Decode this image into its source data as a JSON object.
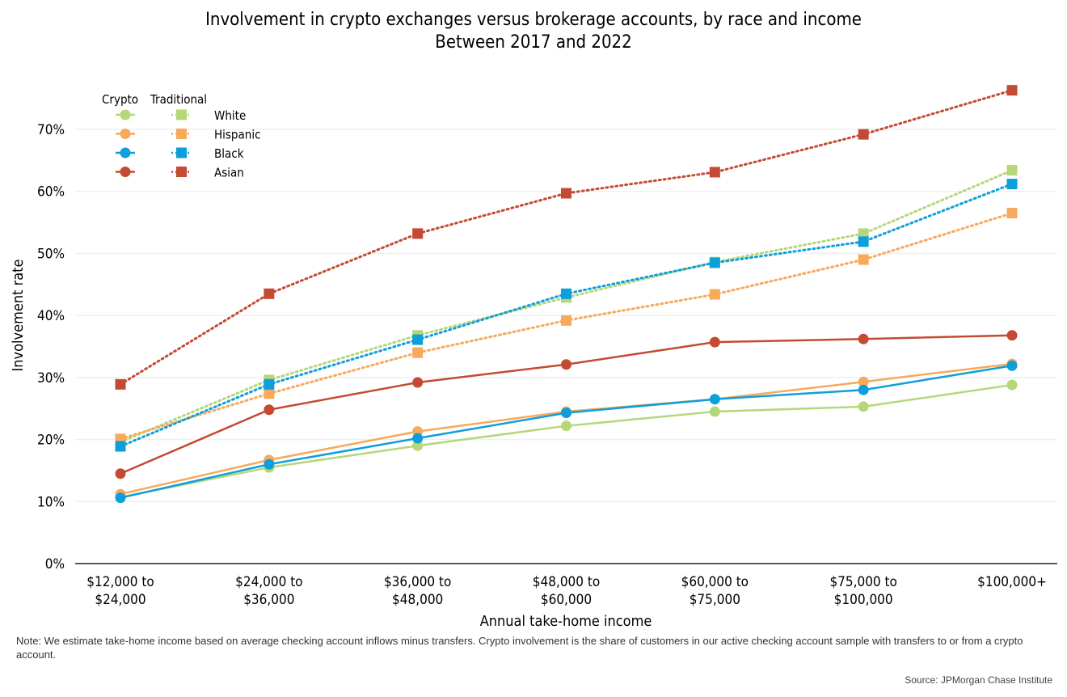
{
  "chart_data": {
    "type": "line",
    "title": "Involvement in crypto exchanges versus brokerage accounts, by race and income",
    "subtitle": "Between 2017 and 2022",
    "xlabel": "Annual take-home income",
    "ylabel": "Involvement rate",
    "ylim": [
      0,
      75
    ],
    "yticks": [
      0,
      10,
      20,
      30,
      40,
      50,
      60,
      70
    ],
    "ytick_labels": [
      "0%",
      "10%",
      "20%",
      "30%",
      "40%",
      "50%",
      "60%",
      "70%"
    ],
    "categories": [
      "$12,000 to\n$24,000",
      "$24,000 to\n$36,000",
      "$36,000 to\n$48,000",
      "$48,000 to\n$60,000",
      "$60,000 to\n$75,000",
      "$75,000 to\n$100,000",
      "$100,000+"
    ],
    "grid": "horizontal",
    "legend": {
      "placement": "top-left",
      "col_headers": [
        "Crypto",
        "Traditional"
      ],
      "labels": [
        "White",
        "Hispanic",
        "Black",
        "Asian"
      ]
    },
    "series": [
      {
        "name": "White",
        "kind": "Traditional",
        "color": "#b5d77a",
        "style": "dotted",
        "marker": "square",
        "values": [
          19.6,
          29.6,
          36.8,
          42.9,
          48.6,
          53.2,
          63.4
        ]
      },
      {
        "name": "Hispanic",
        "kind": "Traditional",
        "color": "#f7a95c",
        "style": "dotted",
        "marker": "square",
        "values": [
          20.1,
          27.4,
          34.0,
          39.2,
          43.4,
          49.0,
          56.5
        ]
      },
      {
        "name": "Black",
        "kind": "Traditional",
        "color": "#0e9fdb",
        "style": "dotted",
        "marker": "square",
        "values": [
          18.9,
          28.9,
          36.1,
          43.5,
          48.5,
          51.9,
          61.2
        ]
      },
      {
        "name": "Asian",
        "kind": "Traditional",
        "color": "#c44a33",
        "style": "dotted",
        "marker": "square",
        "values": [
          28.9,
          43.5,
          53.2,
          59.7,
          63.1,
          69.2,
          76.3
        ]
      },
      {
        "name": "White",
        "kind": "Crypto",
        "color": "#b5d77a",
        "style": "solid",
        "marker": "circle",
        "values": [
          10.7,
          15.5,
          19.0,
          22.2,
          24.5,
          25.3,
          28.8
        ]
      },
      {
        "name": "Hispanic",
        "kind": "Crypto",
        "color": "#f7a95c",
        "style": "solid",
        "marker": "circle",
        "values": [
          11.2,
          16.7,
          21.3,
          24.5,
          26.5,
          29.3,
          32.2
        ]
      },
      {
        "name": "Black",
        "kind": "Crypto",
        "color": "#0e9fdb",
        "style": "solid",
        "marker": "circle",
        "values": [
          10.6,
          16.0,
          20.2,
          24.3,
          26.5,
          28.0,
          31.9
        ]
      },
      {
        "name": "Asian",
        "kind": "Crypto",
        "color": "#c44a33",
        "style": "solid",
        "marker": "circle",
        "values": [
          14.5,
          24.8,
          29.2,
          32.1,
          35.7,
          36.2,
          36.8
        ]
      }
    ]
  },
  "note": "Note: We estimate take-home income based on average checking account inflows minus transfers. Crypto involvement is the share of customers in our active checking account sample with transfers to or from a crypto account.",
  "source": "Source: JPMorgan Chase Institute"
}
